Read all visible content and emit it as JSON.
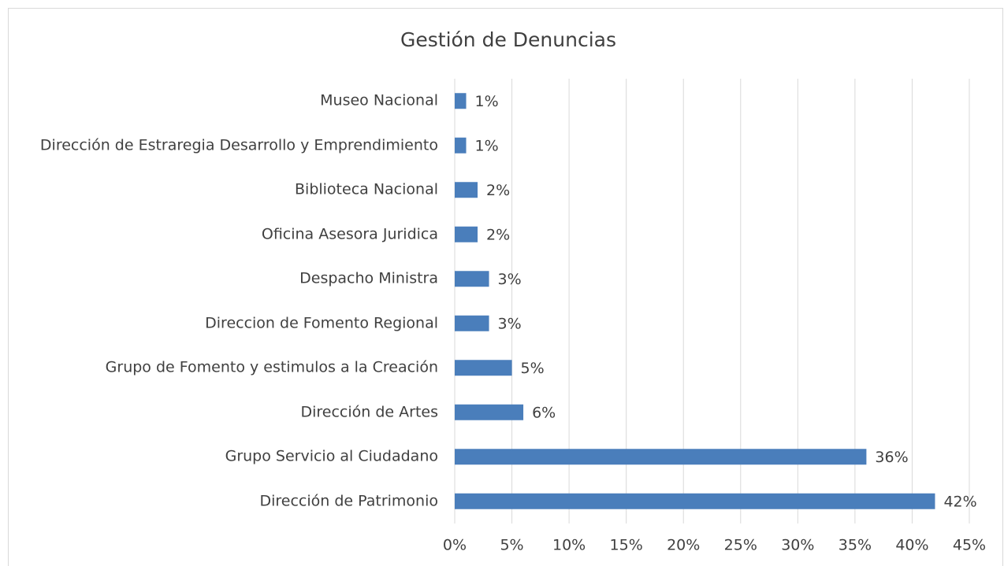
{
  "chart_data": {
    "type": "barh",
    "title": "Gestión de Denuncias",
    "categories": [
      "Museo Nacional",
      "Dirección de Estraregia Desarrollo y Emprendimiento",
      "Biblioteca Nacional",
      "Oficina Asesora Juridica",
      "Despacho Ministra",
      "Direccion de Fomento Regional",
      "Grupo de Fomento y estimulos a la Creación",
      "Dirección de Artes",
      "Grupo Servicio al Ciudadano",
      "Dirección de Patrimonio"
    ],
    "values": [
      1,
      1,
      2,
      2,
      3,
      3,
      5,
      6,
      36,
      42
    ],
    "value_labels": [
      "1%",
      "1%",
      "2%",
      "2%",
      "3%",
      "3%",
      "5%",
      "6%",
      "36%",
      "42%"
    ],
    "color": "#4a7ebb",
    "xlim": [
      0,
      45
    ],
    "xticks": [
      {
        "value": 0,
        "label": "0%"
      },
      {
        "value": 5,
        "label": "5%"
      },
      {
        "value": 10,
        "label": "10%"
      },
      {
        "value": 15,
        "label": "15%"
      },
      {
        "value": 20,
        "label": "20%"
      },
      {
        "value": 25,
        "label": "25%"
      },
      {
        "value": 30,
        "label": "30%"
      },
      {
        "value": 35,
        "label": "35%"
      },
      {
        "value": 40,
        "label": "40%"
      },
      {
        "value": 45,
        "label": "45%"
      }
    ],
    "grid": true
  }
}
